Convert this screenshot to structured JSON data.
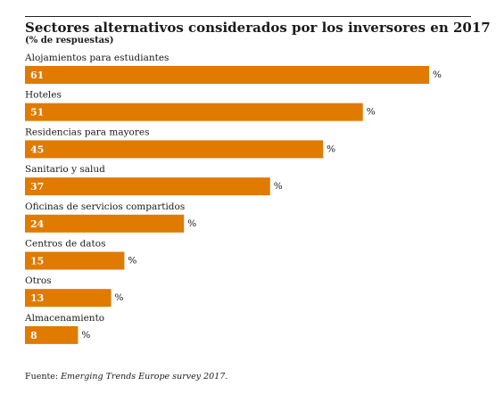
{
  "title": "Sectores alternativos considerados por los inversores en 2017",
  "subtitle": "(% de respuestas)",
  "footer": {
    "prefix": "Fuente: ",
    "source": "Emerging Trends Europe survey 2017."
  },
  "colors": {
    "bar": "#E07A00",
    "bar_label": "#ffffff",
    "text": "#1a1a1a"
  },
  "chart_data": {
    "type": "bar",
    "orientation": "horizontal",
    "categories": [
      "Alojamientos para estudiantes",
      "Hoteles",
      "Residencias para mayores",
      "Sanitario y salud",
      "Oficinas de servicios compartidos",
      "Centros de datos",
      "Otros",
      "Almacenamiento"
    ],
    "values": [
      61,
      51,
      45,
      37,
      24,
      15,
      13,
      8
    ],
    "unit": "%",
    "xlim": [
      0,
      61
    ]
  }
}
